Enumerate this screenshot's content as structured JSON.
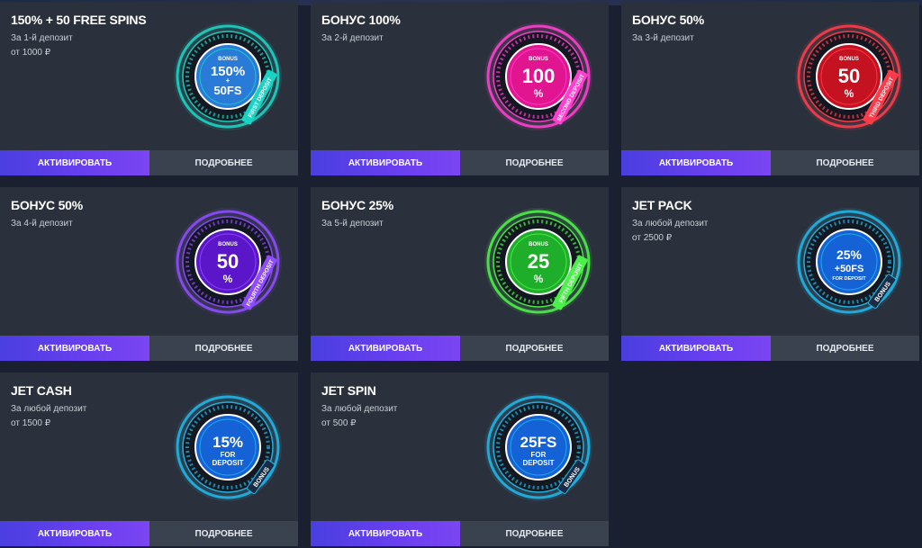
{
  "colors": {
    "card_bg": "#2b313c",
    "activate_btn": "#5a40ea",
    "more_btn": "#3a4250",
    "page_bg": "#1a2030"
  },
  "cards": [
    {
      "title": "150% + 50 FREE SPINS",
      "sub1": "За 1-й депозит",
      "sub2": "от 1000 ₽",
      "badge": {
        "line1": "BONUS",
        "line2": "150%",
        "line3": "+",
        "line4": "50FS",
        "ribbon": "FIRST DEPOSIT",
        "color": "#19d3c5",
        "core": "#2a7ad8"
      },
      "activate": "АКТИВИРОВАТЬ",
      "more": "ПОДРОБНЕЕ"
    },
    {
      "title": "БОНУС 100%",
      "sub1": "За 2-й депозит",
      "sub2": "",
      "badge": {
        "line1": "BONUS",
        "line2": "100",
        "line3": "%",
        "line4": "",
        "ribbon": "SECOND DEPOSIT",
        "color": "#ff3fd0",
        "core": "#e0158f"
      },
      "activate": "АКТИВИРОВАТЬ",
      "more": "ПОДРОБНЕЕ"
    },
    {
      "title": "БОНУС 50%",
      "sub1": "За 3-й депозит",
      "sub2": "",
      "badge": {
        "line1": "BONUS",
        "line2": "50",
        "line3": "%",
        "line4": "",
        "ribbon": "THIRD DEPOSIT",
        "color": "#ff3b4a",
        "core": "#c41220"
      },
      "activate": "АКТИВИРОВАТЬ",
      "more": "ПОДРОБНЕЕ"
    },
    {
      "title": "БОНУС 50%",
      "sub1": "За 4-й депозит",
      "sub2": "",
      "badge": {
        "line1": "BONUS",
        "line2": "50",
        "line3": "%",
        "line4": "",
        "ribbon": "FOURTH DEPOSIT",
        "color": "#8f4bff",
        "core": "#5a16c8"
      },
      "activate": "АКТИВИРОВАТЬ",
      "more": "ПОДРОБНЕЕ"
    },
    {
      "title": "БОНУС 25%",
      "sub1": "За 5-й депозит",
      "sub2": "",
      "badge": {
        "line1": "BONUS",
        "line2": "25",
        "line3": "%",
        "line4": "",
        "ribbon": "FIFTH DEPOSIT",
        "color": "#4cf04a",
        "core": "#1fae2a"
      },
      "activate": "АКТИВИРОВАТЬ",
      "more": "ПОДРОБНЕЕ"
    },
    {
      "title": "JET PACK",
      "sub1": "За любой депозит",
      "sub2": "от 2500 ₽",
      "badge": {
        "line1": "",
        "line2": "25%",
        "line3": "+50FS",
        "line4": "FOR DEPOSIT",
        "ribbon": "BONUS",
        "color": "#1fb6e8",
        "core": "#1561d6"
      },
      "activate": "АКТИВИРОВАТЬ",
      "more": "ПОДРОБНЕЕ"
    },
    {
      "title": "JET CASH",
      "sub1": "За любой депозит",
      "sub2": "от 1500 ₽",
      "badge": {
        "line1": "",
        "line2": "15%",
        "line3": "FOR",
        "line4": "DEPOSIT",
        "ribbon": "BONUS",
        "color": "#1fb6e8",
        "core": "#1561d6"
      },
      "activate": "АКТИВИРОВАТЬ",
      "more": "ПОДРОБНЕЕ"
    },
    {
      "title": "JET SPIN",
      "sub1": "За любой депозит",
      "sub2": "от 500 ₽",
      "badge": {
        "line1": "",
        "line2": "25FS",
        "line3": "FOR",
        "line4": "DEPOSIT",
        "ribbon": "BONUS",
        "color": "#1fb6e8",
        "core": "#1561d6"
      },
      "activate": "АКТИВИРОВАТЬ",
      "more": "ПОДРОБНЕЕ"
    }
  ]
}
